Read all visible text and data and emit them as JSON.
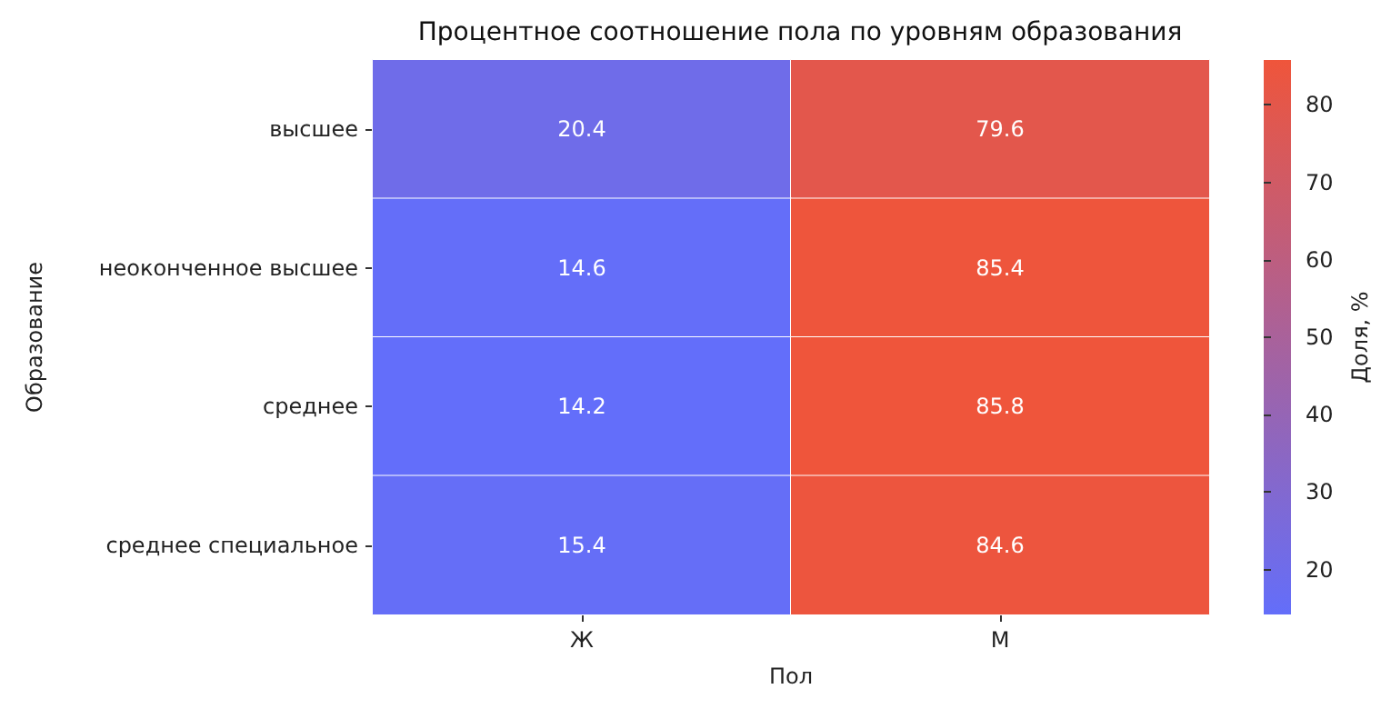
{
  "chart_data": {
    "type": "heatmap",
    "title": "Процентное соотношение пола по уровням образования",
    "xlabel": "Пол",
    "ylabel": "Образование",
    "clabel": "Доля, %",
    "categories": [
      "Ж",
      "М"
    ],
    "y_categories": [
      "высшее",
      "неоконченное высшее",
      "среднее",
      "среднее специальное"
    ],
    "cells": [
      [
        20.4,
        79.6
      ],
      [
        14.6,
        85.4
      ],
      [
        14.2,
        85.8
      ],
      [
        15.4,
        84.6
      ]
    ],
    "data_labels": true,
    "colors": [
      "#636efa",
      "#ef553b"
    ],
    "clim": [
      14.2,
      85.8
    ],
    "cticks": [
      20,
      30,
      40,
      50,
      60,
      70,
      80
    ]
  }
}
